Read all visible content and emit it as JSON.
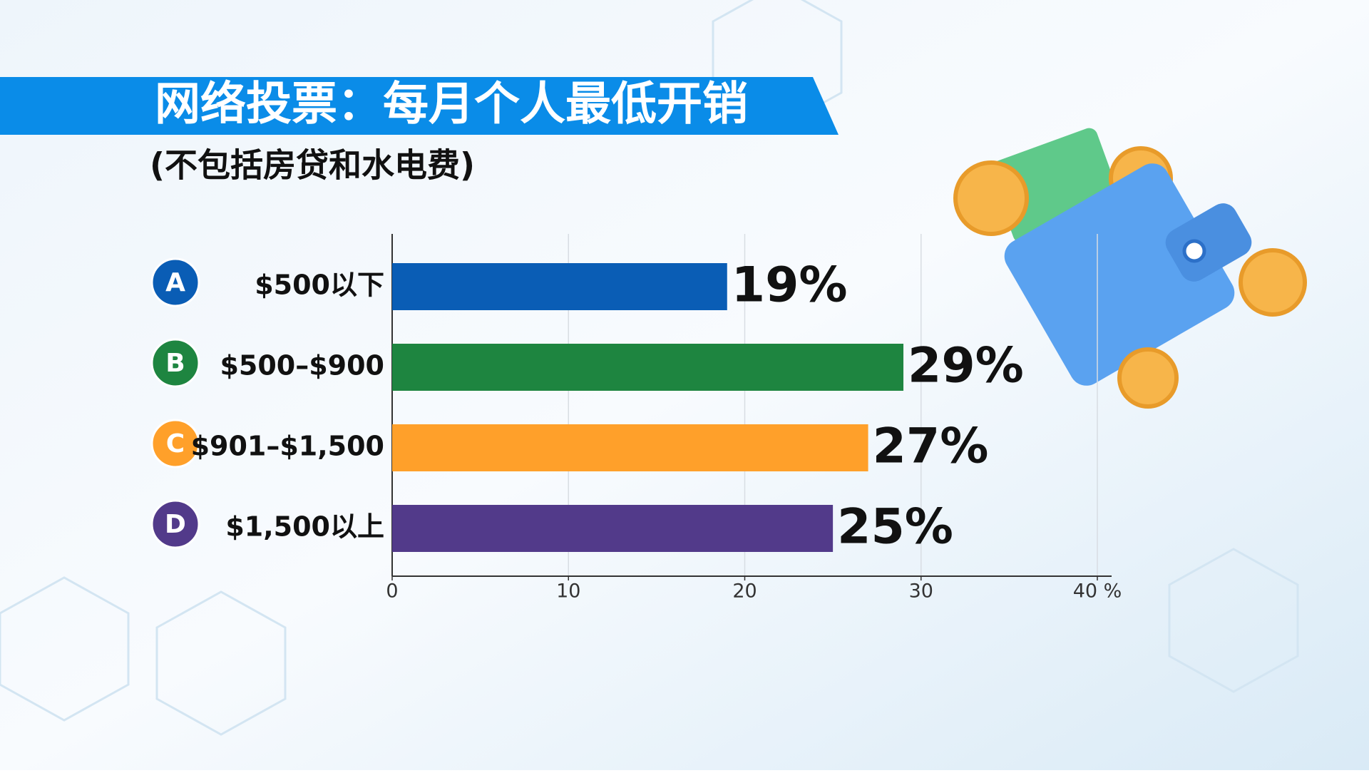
{
  "chart_data": {
    "type": "bar",
    "orientation": "horizontal",
    "title": "网络投票：每月个人最低开销",
    "subtitle": "(不包括房贷和水电费)",
    "markers": [
      "A",
      "B",
      "C",
      "D"
    ],
    "categories": [
      "$500以下",
      "$500–$900",
      "$901–$1,500",
      "$1,500以上"
    ],
    "values": [
      19,
      29,
      27,
      25
    ],
    "value_labels": [
      "19%",
      "29%",
      "27%",
      "25%"
    ],
    "colors": [
      "#0a5db5",
      "#1e8540",
      "#ffa02a",
      "#523a8a"
    ],
    "xlim": [
      0,
      40
    ],
    "xticks": [
      0,
      10,
      20,
      30,
      {
        "value": 40,
        "label": "40 %"
      }
    ],
    "grid": true
  }
}
